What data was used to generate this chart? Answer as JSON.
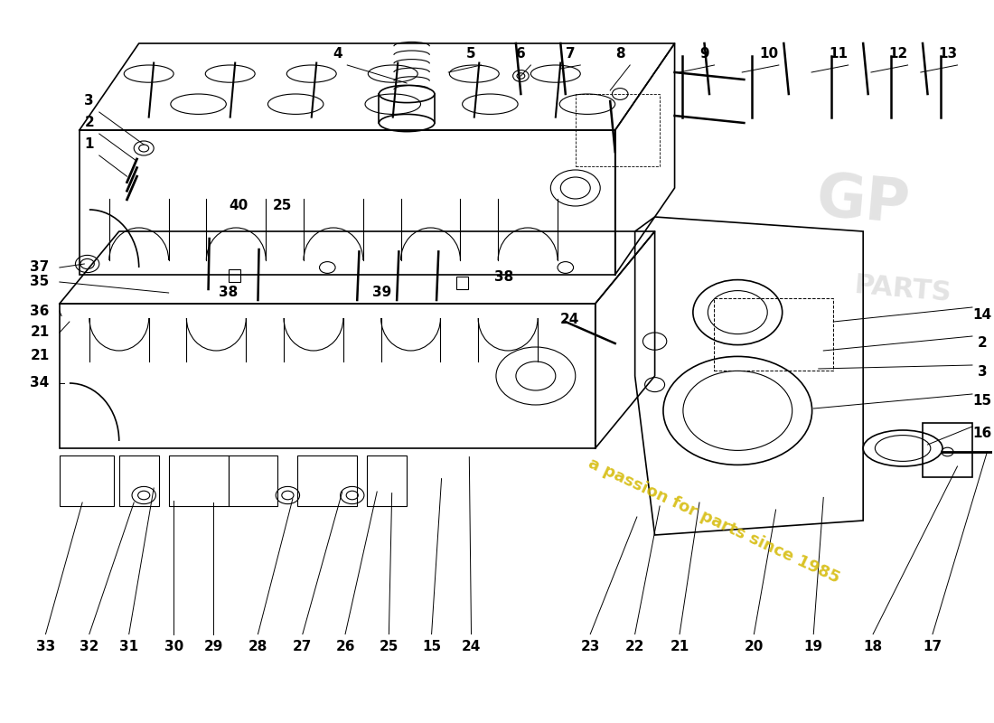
{
  "background_color": "#ffffff",
  "line_color": "#000000",
  "watermark_text": "a passion for parts since 1985",
  "watermark_color": "#d4b800",
  "callout_font_size": 11
}
